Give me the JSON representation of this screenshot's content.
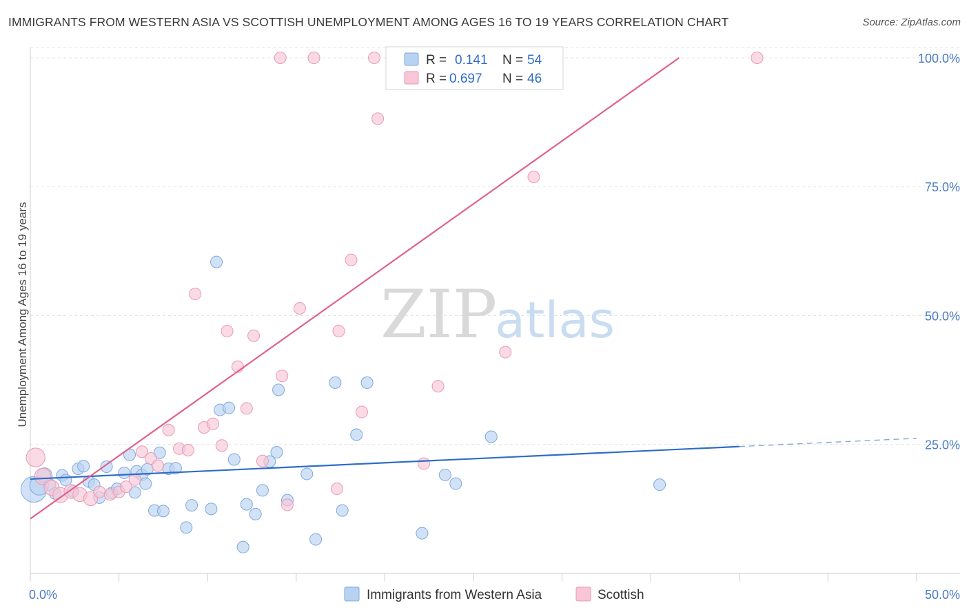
{
  "header": {
    "title": "IMMIGRANTS FROM WESTERN ASIA VS SCOTTISH UNEMPLOYMENT AMONG AGES 16 TO 19 YEARS CORRELATION CHART",
    "source": "Source: ZipAtlas.com"
  },
  "watermark": {
    "zip": "ZIP",
    "atlas": "atlas"
  },
  "colors": {
    "blue_fill": "#b8d2f2",
    "blue_stroke": "#7fa8dc",
    "blue_line": "#2f6cc8",
    "pink_fill": "#f8c6d6",
    "pink_stroke": "#e99ab4",
    "pink_line": "#e0608a",
    "tick_text": "#4a7cc4",
    "grid": "#e3e3e3"
  },
  "legend": {
    "rows": [
      {
        "r_label": "R =",
        "r_value": "0.141",
        "n_label": "N =",
        "n_value": "54"
      },
      {
        "r_label": "R =",
        "r_value": "0.697",
        "n_label": "N =",
        "n_value": "46"
      }
    ]
  },
  "chart_data": {
    "type": "scatter",
    "title": "IMMIGRANTS FROM WESTERN ASIA VS SCOTTISH UNEMPLOYMENT AMONG AGES 16 TO 19 YEARS CORRELATION CHART",
    "xlabel": "",
    "ylabel": "Unemployment Among Ages 16 to 19 years",
    "xlim": [
      0,
      50
    ],
    "ylim": [
      0,
      102
    ],
    "x_tick_labels": [
      "0.0%",
      "50.0%"
    ],
    "y_ticks": [
      25,
      50,
      75,
      100
    ],
    "y_tick_labels": [
      "25.0%",
      "50.0%",
      "75.0%",
      "100.0%"
    ],
    "grid": true,
    "legend_position": "top-center",
    "series": [
      {
        "name": "Immigrants from Western Asia",
        "color": "#b8d2f2",
        "r": 0.141,
        "n": 54,
        "trend": {
          "x0": 0,
          "y0": 18.3,
          "x1": 40,
          "y1": 24.6,
          "dash_to_x": 50,
          "dash_to_y": 26.2
        },
        "points": [
          {
            "x": 0.2,
            "y": 16.3,
            "s": 2.2
          },
          {
            "x": 0.5,
            "y": 17.0,
            "s": 1.6
          },
          {
            "x": 0.8,
            "y": 19.0,
            "s": 1.3
          },
          {
            "x": 1.1,
            "y": 17.2,
            "s": 1.0
          },
          {
            "x": 1.4,
            "y": 15.5,
            "s": 1.0
          },
          {
            "x": 1.8,
            "y": 19.0,
            "s": 1.0
          },
          {
            "x": 2.0,
            "y": 18.1,
            "s": 1.0
          },
          {
            "x": 2.4,
            "y": 15.9,
            "s": 1.0
          },
          {
            "x": 2.7,
            "y": 20.3,
            "s": 1.0
          },
          {
            "x": 3.0,
            "y": 20.8,
            "s": 1.0
          },
          {
            "x": 3.3,
            "y": 17.8,
            "s": 1.0
          },
          {
            "x": 3.6,
            "y": 17.2,
            "s": 1.0
          },
          {
            "x": 3.9,
            "y": 14.7,
            "s": 1.0
          },
          {
            "x": 4.3,
            "y": 20.7,
            "s": 1.0
          },
          {
            "x": 4.6,
            "y": 15.6,
            "s": 1.0
          },
          {
            "x": 4.9,
            "y": 16.4,
            "s": 1.0
          },
          {
            "x": 5.3,
            "y": 19.5,
            "s": 1.0
          },
          {
            "x": 5.6,
            "y": 23.0,
            "s": 1.0
          },
          {
            "x": 5.9,
            "y": 15.7,
            "s": 1.0
          },
          {
            "x": 6.0,
            "y": 19.8,
            "s": 1.0
          },
          {
            "x": 6.3,
            "y": 19.1,
            "s": 1.0
          },
          {
            "x": 6.5,
            "y": 17.4,
            "s": 1.0
          },
          {
            "x": 6.6,
            "y": 20.2,
            "s": 1.0
          },
          {
            "x": 7.0,
            "y": 12.2,
            "s": 1.0
          },
          {
            "x": 7.3,
            "y": 23.4,
            "s": 1.0
          },
          {
            "x": 7.5,
            "y": 12.1,
            "s": 1.0
          },
          {
            "x": 7.8,
            "y": 20.3,
            "s": 1.0
          },
          {
            "x": 8.2,
            "y": 20.4,
            "s": 1.0
          },
          {
            "x": 8.8,
            "y": 8.9,
            "s": 1.0
          },
          {
            "x": 9.1,
            "y": 13.2,
            "s": 1.0
          },
          {
            "x": 10.2,
            "y": 12.5,
            "s": 1.0
          },
          {
            "x": 10.5,
            "y": 60.4,
            "s": 1.0
          },
          {
            "x": 10.7,
            "y": 31.7,
            "s": 1.0
          },
          {
            "x": 11.2,
            "y": 32.1,
            "s": 1.0
          },
          {
            "x": 11.5,
            "y": 22.1,
            "s": 1.0
          },
          {
            "x": 12.0,
            "y": 5.1,
            "s": 1.0
          },
          {
            "x": 12.2,
            "y": 13.4,
            "s": 1.0
          },
          {
            "x": 12.7,
            "y": 11.5,
            "s": 1.0
          },
          {
            "x": 13.1,
            "y": 16.1,
            "s": 1.0
          },
          {
            "x": 13.5,
            "y": 21.7,
            "s": 1.0
          },
          {
            "x": 13.9,
            "y": 23.5,
            "s": 1.0
          },
          {
            "x": 14.0,
            "y": 35.6,
            "s": 1.0
          },
          {
            "x": 14.5,
            "y": 14.2,
            "s": 1.0
          },
          {
            "x": 15.6,
            "y": 19.3,
            "s": 1.0
          },
          {
            "x": 16.1,
            "y": 6.6,
            "s": 1.0
          },
          {
            "x": 17.2,
            "y": 37.0,
            "s": 1.0
          },
          {
            "x": 17.6,
            "y": 12.2,
            "s": 1.0
          },
          {
            "x": 18.4,
            "y": 26.9,
            "s": 1.0
          },
          {
            "x": 19.0,
            "y": 37.0,
            "s": 1.0
          },
          {
            "x": 22.1,
            "y": 7.8,
            "s": 1.0
          },
          {
            "x": 23.4,
            "y": 19.1,
            "s": 1.0
          },
          {
            "x": 24.0,
            "y": 17.4,
            "s": 1.0
          },
          {
            "x": 26.0,
            "y": 26.5,
            "s": 1.0
          },
          {
            "x": 35.5,
            "y": 17.2,
            "s": 1.0
          }
        ]
      },
      {
        "name": "Scottish",
        "color": "#f8c6d6",
        "r": 0.697,
        "n": 46,
        "trend": {
          "x0": 0,
          "y0": 10.6,
          "x1": 36.6,
          "y1": 100
        },
        "points": [
          {
            "x": 0.3,
            "y": 22.5,
            "s": 1.6
          },
          {
            "x": 0.7,
            "y": 18.8,
            "s": 1.4
          },
          {
            "x": 1.2,
            "y": 16.6,
            "s": 1.3
          },
          {
            "x": 1.7,
            "y": 15.2,
            "s": 1.3
          },
          {
            "x": 2.3,
            "y": 15.9,
            "s": 1.2
          },
          {
            "x": 2.8,
            "y": 15.3,
            "s": 1.2
          },
          {
            "x": 3.4,
            "y": 14.5,
            "s": 1.2
          },
          {
            "x": 3.9,
            "y": 15.8,
            "s": 1.0
          },
          {
            "x": 4.5,
            "y": 15.3,
            "s": 1.0
          },
          {
            "x": 5.0,
            "y": 15.8,
            "s": 1.0
          },
          {
            "x": 5.4,
            "y": 16.8,
            "s": 1.0
          },
          {
            "x": 5.9,
            "y": 18.2,
            "s": 1.0
          },
          {
            "x": 6.3,
            "y": 23.6,
            "s": 1.0
          },
          {
            "x": 6.8,
            "y": 22.3,
            "s": 1.0
          },
          {
            "x": 7.2,
            "y": 20.9,
            "s": 1.0
          },
          {
            "x": 7.8,
            "y": 27.8,
            "s": 1.0
          },
          {
            "x": 8.4,
            "y": 24.2,
            "s": 1.0
          },
          {
            "x": 8.9,
            "y": 23.9,
            "s": 1.0
          },
          {
            "x": 9.3,
            "y": 54.2,
            "s": 1.0
          },
          {
            "x": 9.8,
            "y": 28.3,
            "s": 1.0
          },
          {
            "x": 10.3,
            "y": 29.0,
            "s": 1.0
          },
          {
            "x": 10.8,
            "y": 24.8,
            "s": 1.0
          },
          {
            "x": 11.1,
            "y": 47.0,
            "s": 1.0
          },
          {
            "x": 11.7,
            "y": 40.1,
            "s": 1.0
          },
          {
            "x": 12.2,
            "y": 32.0,
            "s": 1.0
          },
          {
            "x": 12.6,
            "y": 46.1,
            "s": 1.0
          },
          {
            "x": 13.1,
            "y": 21.8,
            "s": 1.0
          },
          {
            "x": 14.1,
            "y": 100.0,
            "s": 1.0
          },
          {
            "x": 14.2,
            "y": 38.3,
            "s": 1.0
          },
          {
            "x": 14.5,
            "y": 13.3,
            "s": 1.0
          },
          {
            "x": 15.2,
            "y": 51.4,
            "s": 1.0
          },
          {
            "x": 16.0,
            "y": 100.0,
            "s": 1.0
          },
          {
            "x": 17.3,
            "y": 16.4,
            "s": 1.0
          },
          {
            "x": 17.4,
            "y": 47.0,
            "s": 1.0
          },
          {
            "x": 18.1,
            "y": 60.8,
            "s": 1.0
          },
          {
            "x": 18.7,
            "y": 31.3,
            "s": 1.0
          },
          {
            "x": 19.4,
            "y": 100.0,
            "s": 1.0
          },
          {
            "x": 19.6,
            "y": 88.2,
            "s": 1.0
          },
          {
            "x": 20.7,
            "y": 100.0,
            "s": 1.0
          },
          {
            "x": 22.0,
            "y": 100.0,
            "s": 1.0
          },
          {
            "x": 22.2,
            "y": 21.3,
            "s": 1.0
          },
          {
            "x": 23.0,
            "y": 100.0,
            "s": 1.0
          },
          {
            "x": 23.0,
            "y": 36.3,
            "s": 1.0
          },
          {
            "x": 26.8,
            "y": 42.9,
            "s": 1.0
          },
          {
            "x": 28.4,
            "y": 76.9,
            "s": 1.0
          },
          {
            "x": 41.0,
            "y": 100.0,
            "s": 1.0
          }
        ]
      }
    ]
  }
}
